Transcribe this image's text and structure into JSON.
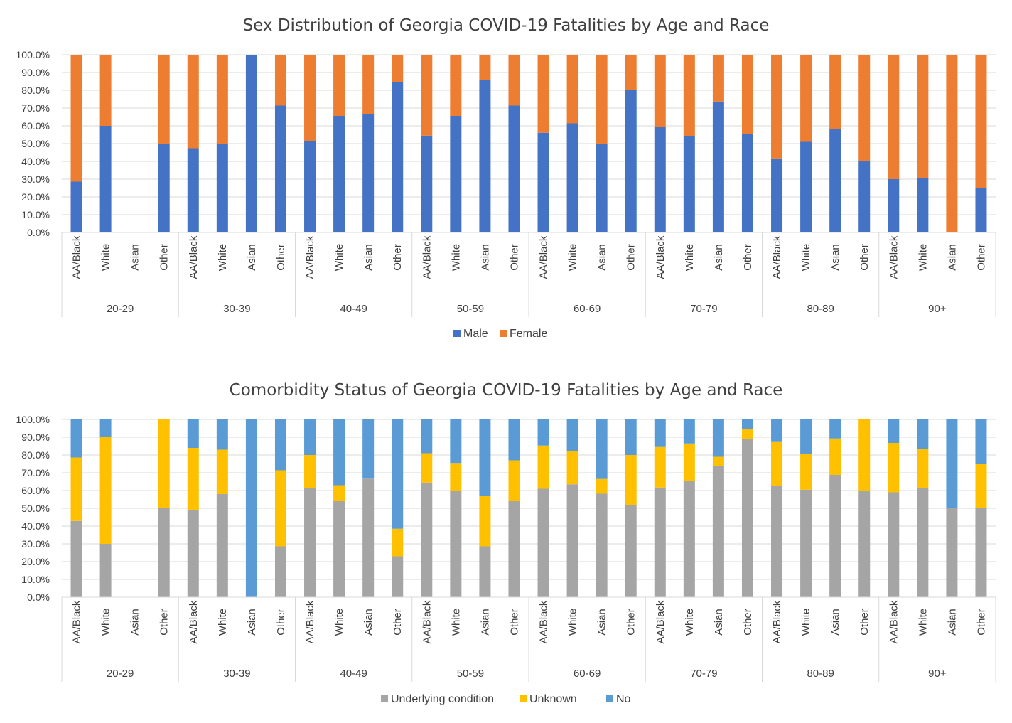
{
  "chart_data": [
    {
      "type": "bar",
      "stacked": true,
      "title": "Sex Distribution of Georgia COVID-19 Fatalities by Age and Race",
      "xlabel": "",
      "ylabel": "",
      "ylim": [
        0,
        100
      ],
      "y_tick_labels": [
        "0.0%",
        "10.0%",
        "20.0%",
        "30.0%",
        "40.0%",
        "50.0%",
        "60.0%",
        "70.0%",
        "80.0%",
        "90.0%",
        "100.0%"
      ],
      "groups": [
        "20-29",
        "30-39",
        "40-49",
        "50-59",
        "60-69",
        "70-79",
        "80-89",
        "90+"
      ],
      "races": [
        "AA/Black",
        "White",
        "Asian",
        "Other"
      ],
      "legend_position": "bottom",
      "grid": true,
      "series": [
        {
          "name": "Male",
          "color": "#4472c4",
          "values": [
            28.6,
            60,
            0,
            50,
            47.4,
            50,
            100,
            71.4,
            51.2,
            65.6,
            66.7,
            84.6,
            54.5,
            65.6,
            85.7,
            71.4,
            56.1,
            61.4,
            50,
            80,
            59.4,
            54.2,
            73.7,
            55.6,
            41.7,
            51,
            58.1,
            40,
            30,
            30.8,
            0,
            25
          ]
        },
        {
          "name": "Female",
          "color": "#ed7d31",
          "values": [
            71.4,
            40,
            0,
            50,
            52.6,
            50,
            0,
            28.6,
            48.8,
            34.4,
            33.3,
            15.4,
            45.5,
            34.4,
            14.3,
            28.6,
            43.9,
            38.6,
            50,
            20,
            40.6,
            45.8,
            26.3,
            44.4,
            58.3,
            49,
            41.9,
            60,
            70,
            69.2,
            100,
            75
          ]
        }
      ]
    },
    {
      "type": "bar",
      "stacked": true,
      "title": "Comorbidity Status of Georgia COVID-19 Fatalities by Age and Race",
      "xlabel": "",
      "ylabel": "",
      "ylim": [
        0,
        100
      ],
      "y_tick_labels": [
        "0.0%",
        "10.0%",
        "20.0%",
        "30.0%",
        "40.0%",
        "50.0%",
        "60.0%",
        "70.0%",
        "80.0%",
        "90.0%",
        "100.0%"
      ],
      "groups": [
        "20-29",
        "30-39",
        "40-49",
        "50-59",
        "60-69",
        "70-79",
        "80-89",
        "90+"
      ],
      "races": [
        "AA/Black",
        "White",
        "Asian",
        "Other"
      ],
      "legend_position": "bottom",
      "grid": true,
      "series": [
        {
          "name": "Underlying condition",
          "color": "#a5a5a5",
          "values": [
            42.9,
            30,
            0,
            50,
            49,
            58,
            0,
            28.6,
            61.3,
            54,
            66.7,
            23,
            64.5,
            60,
            28.6,
            54,
            61,
            63.5,
            58.2,
            52,
            61.7,
            65.3,
            73.8,
            88.9,
            62.5,
            60.5,
            68.8,
            60,
            59,
            61.5,
            50,
            50
          ]
        },
        {
          "name": "Unknown",
          "color": "#ffc000",
          "values": [
            35.7,
            60,
            0,
            50,
            35,
            25,
            0,
            42.8,
            18.7,
            9,
            0,
            15.5,
            16.5,
            15.5,
            28.4,
            23,
            24.3,
            18.5,
            8.3,
            28,
            22.8,
            21.2,
            5.2,
            5.5,
            24.8,
            20,
            20.5,
            40,
            27.8,
            22,
            0,
            25
          ]
        },
        {
          "name": "No",
          "color": "#5b9bd5",
          "values": [
            21.4,
            10,
            0,
            0,
            16,
            17,
            100,
            28.6,
            20,
            37,
            33.3,
            61.5,
            19,
            24.5,
            43,
            23,
            14.7,
            18,
            33.5,
            20,
            15.5,
            13.5,
            21,
            5.6,
            12.7,
            19.5,
            10.7,
            0,
            13.2,
            16.5,
            50,
            25
          ]
        }
      ]
    }
  ]
}
